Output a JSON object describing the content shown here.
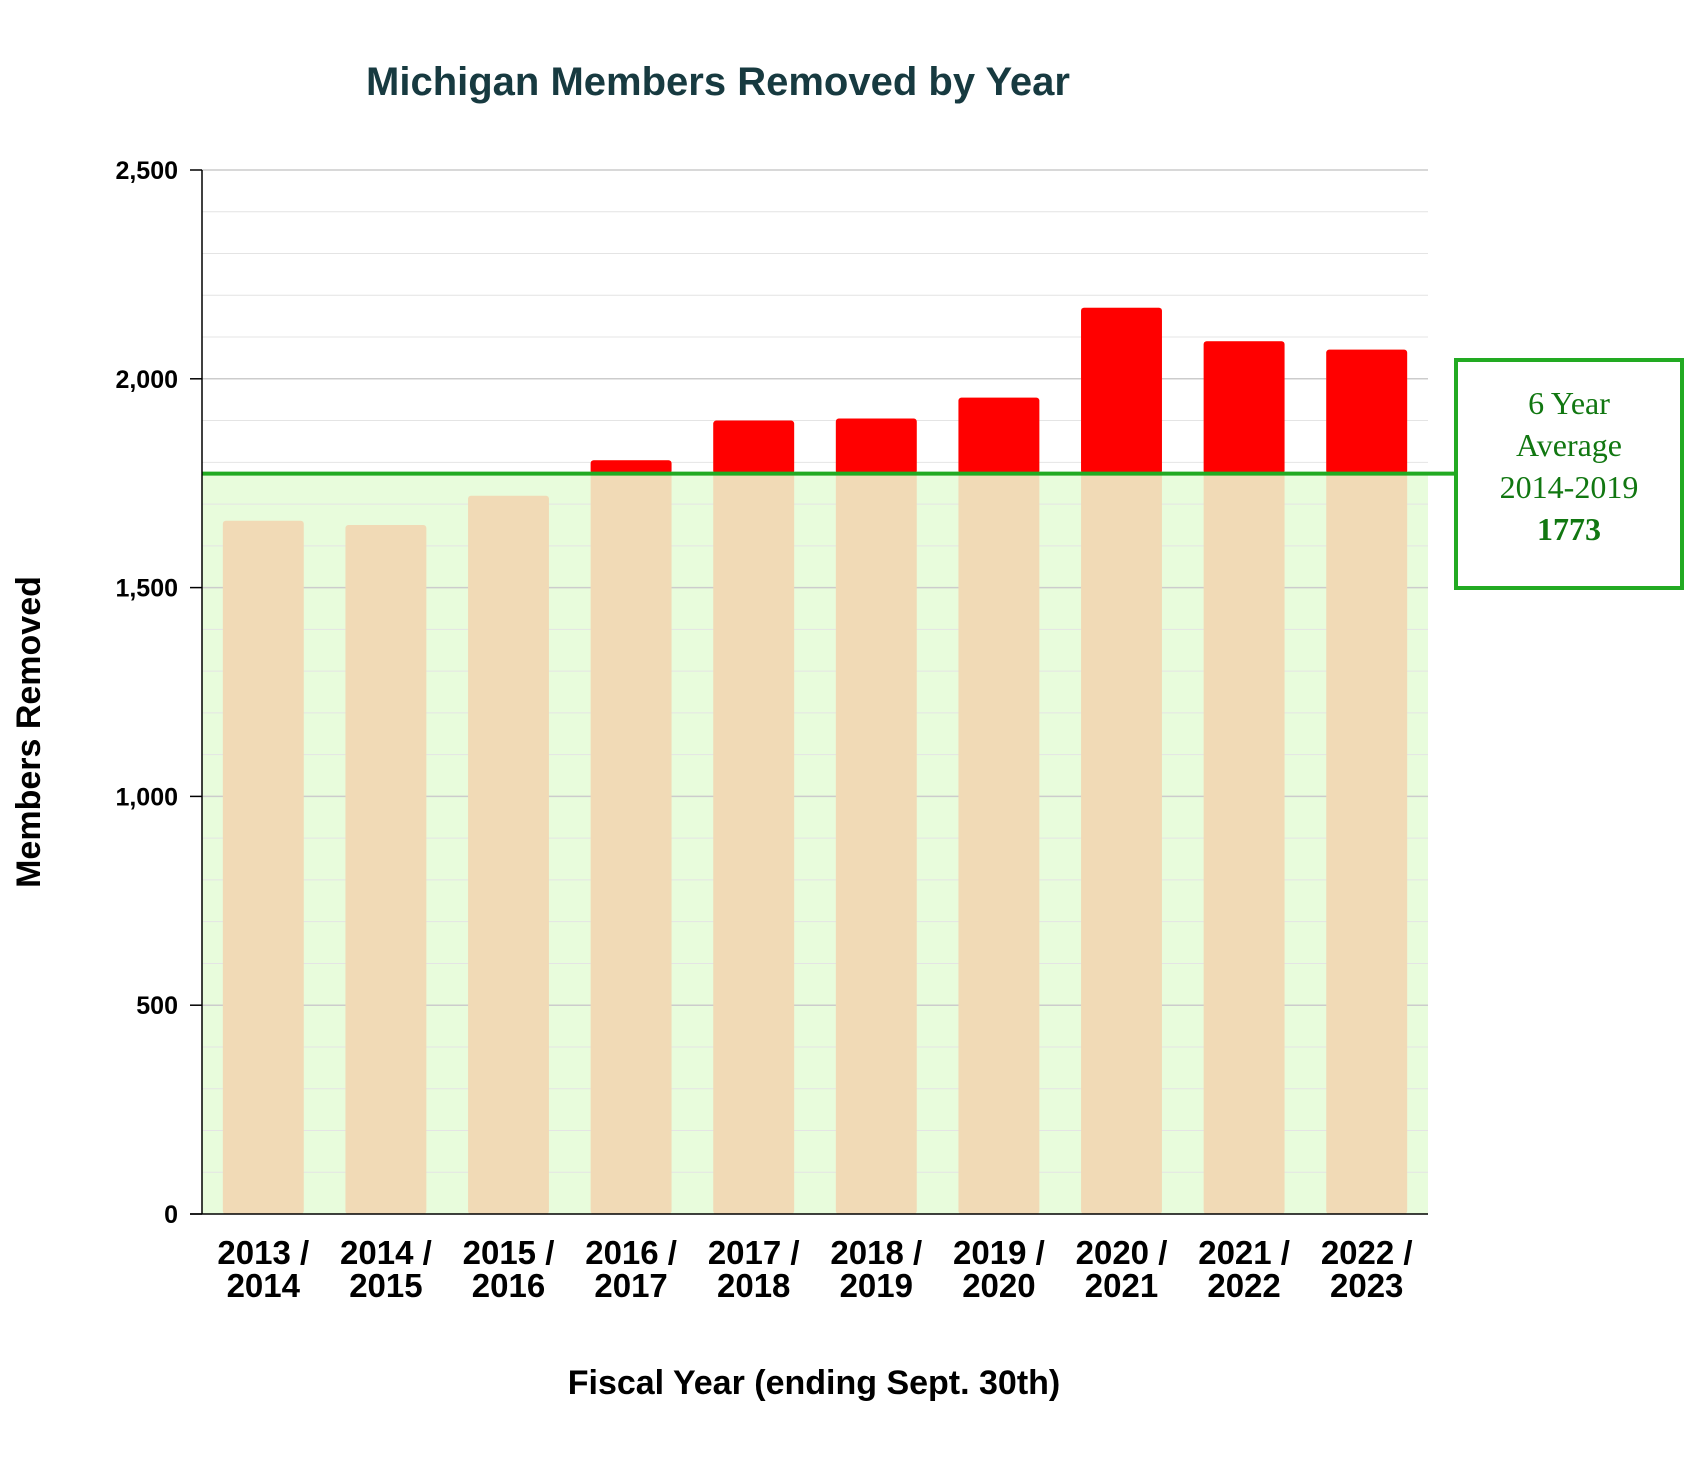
{
  "chart_data": {
    "type": "bar",
    "title": "Michigan Members Removed by Year",
    "xlabel": "Fiscal Year (ending Sept. 30th)",
    "ylabel": "Members Removed",
    "ylim": [
      0,
      2500
    ],
    "yticks": [
      0,
      500,
      1000,
      1500,
      2000,
      2500
    ],
    "ytick_labels": [
      "0",
      "500",
      "1,000",
      "1,500",
      "2,000",
      "2,500"
    ],
    "grid": true,
    "categories": [
      [
        "2013 /",
        "2014"
      ],
      [
        "2014 /",
        "2015"
      ],
      [
        "2015 /",
        "2016"
      ],
      [
        "2016 /",
        "2017"
      ],
      [
        "2017 /",
        "2018"
      ],
      [
        "2018 /",
        "2019"
      ],
      [
        "2019 /",
        "2020"
      ],
      [
        "2020 /",
        "2021"
      ],
      [
        "2021 /",
        "2022"
      ],
      [
        "2022 /",
        "2023"
      ]
    ],
    "values": [
      1660,
      1650,
      1720,
      1805,
      1900,
      1905,
      1955,
      2170,
      2090,
      2070
    ],
    "average": {
      "value": 1773,
      "label_lines": [
        "6 Year",
        "Average",
        "2014-2019"
      ],
      "value_label": "1773"
    }
  },
  "colors": {
    "title": "#173a40",
    "above_average_bar": "#ff0000",
    "below_average_bar": "#f1dab6",
    "average_band": "#e8fcdc",
    "average_line": "#22aa22",
    "annotation_text": "#117711",
    "gridline": "#d8d8d8",
    "axis": "#000000"
  }
}
